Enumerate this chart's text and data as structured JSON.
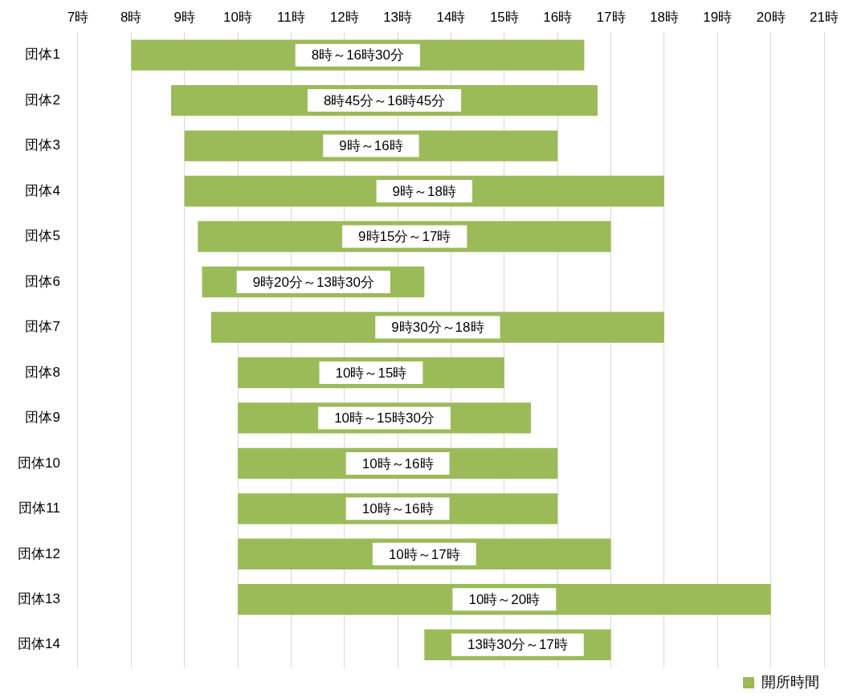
{
  "chart_data": {
    "type": "bar",
    "orientation": "horizontal",
    "categories": [
      "団体1",
      "団体2",
      "団体3",
      "団体4",
      "団体5",
      "団体6",
      "団体7",
      "団体8",
      "団体9",
      "団体10",
      "団体11",
      "団体12",
      "団体13",
      "団体14"
    ],
    "series": [
      {
        "name": "開所時間",
        "color": "#9bbb59",
        "base": [
          8,
          8.75,
          9,
          9,
          9.25,
          9.33,
          9.5,
          10,
          10,
          10,
          10,
          10,
          10,
          13.5
        ],
        "values": [
          8.5,
          8,
          7,
          9,
          7.75,
          4.17,
          8.5,
          5,
          5.5,
          6,
          6,
          7,
          10,
          3.5
        ]
      }
    ],
    "annotations": [
      {
        "text": "8時～16時30分",
        "x": 12.25,
        "y": "団体1"
      },
      {
        "text": "8時45分～16時45分",
        "x": 12.75,
        "y": "団体2"
      },
      {
        "text": "9時～16時",
        "x": 12.5,
        "y": "団体3"
      },
      {
        "text": "9時～18時",
        "x": 13.5,
        "y": "団体4"
      },
      {
        "text": "9時15分～17時",
        "x": 13.13,
        "y": "団体5"
      },
      {
        "text": "9時20分～13時30分",
        "x": 11.42,
        "y": "団体6"
      },
      {
        "text": "9時30分～18時",
        "x": 13.75,
        "y": "団体7"
      },
      {
        "text": "10時～15時",
        "x": 12.5,
        "y": "団体8"
      },
      {
        "text": "10時～15時30分",
        "x": 12.75,
        "y": "団体9"
      },
      {
        "text": "10時～16時",
        "x": 13,
        "y": "団体10"
      },
      {
        "text": "10時～16時",
        "x": 13,
        "y": "団体11"
      },
      {
        "text": "10時～17時",
        "x": 13.5,
        "y": "団体12"
      },
      {
        "text": "10時～20時",
        "x": 15,
        "y": "団体13"
      },
      {
        "text": "13時30分～17時",
        "x": 15.25,
        "y": "団体14"
      }
    ],
    "xlim": [
      7,
      21
    ],
    "xticks": [
      {
        "value": 7,
        "label": "7時"
      },
      {
        "value": 8,
        "label": "8時"
      },
      {
        "value": 9,
        "label": "9時"
      },
      {
        "value": 10,
        "label": "10時"
      },
      {
        "value": 11,
        "label": "11時"
      },
      {
        "value": 12,
        "label": "12時"
      },
      {
        "value": 13,
        "label": "13時"
      },
      {
        "value": 14,
        "label": "14時"
      },
      {
        "value": 15,
        "label": "15時"
      },
      {
        "value": 16,
        "label": "16時"
      },
      {
        "value": 17,
        "label": "17時"
      },
      {
        "value": 18,
        "label": "18時"
      },
      {
        "value": 19,
        "label": "19時"
      },
      {
        "value": 20,
        "label": "20時"
      },
      {
        "value": 21,
        "label": "21時"
      }
    ],
    "grid": "x",
    "legend": "bottom right"
  }
}
